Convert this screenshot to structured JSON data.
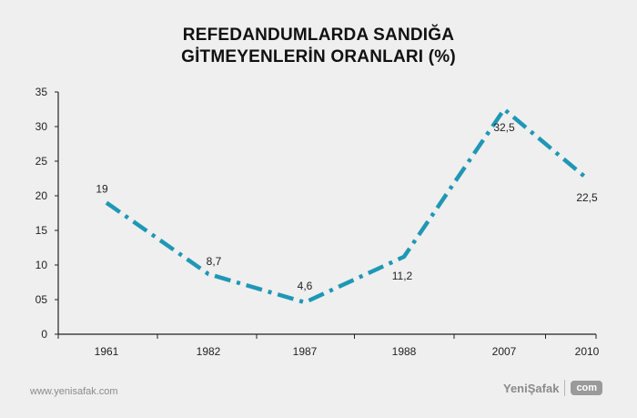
{
  "title_line1": "REFEDANDUMLARDA SANDIĞA",
  "title_line2": "GİTMEYENLERİN ORANLARI (%)",
  "footer_url": "www.yenisafak.com",
  "brand_name": "YeniŞafak",
  "brand_tld": "com",
  "colors": {
    "line": "#1f97b5",
    "axis": "#222222",
    "background": "#efefef"
  },
  "chart_data": {
    "type": "line",
    "categories": [
      "1961",
      "1982",
      "1987",
      "1988",
      "2007",
      "2010"
    ],
    "values": [
      19,
      8.7,
      4.6,
      11.2,
      32.5,
      22.5
    ],
    "data_labels": [
      "19",
      "8,7",
      "4,6",
      "11,2",
      "32,5",
      "22,5"
    ],
    "ylim": [
      0,
      35
    ],
    "yticks": [
      0,
      5,
      10,
      15,
      20,
      25,
      30,
      35
    ],
    "ytick_labels": [
      "0",
      "05",
      "10",
      "15",
      "20",
      "25",
      "30",
      "35"
    ],
    "line_style": "dash-dot",
    "grid": false
  }
}
